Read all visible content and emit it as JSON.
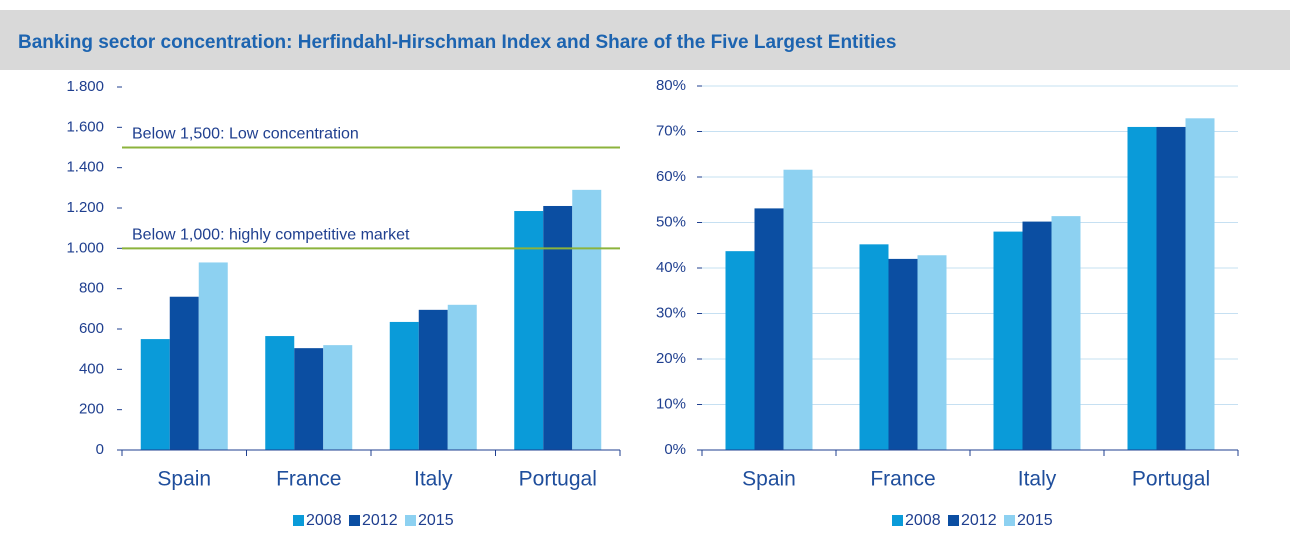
{
  "title": "Banking sector concentration: Herfindahl-Hirschman Index and Share of the Five Largest Entities",
  "chart_data": [
    {
      "type": "bar",
      "categories": [
        "Spain",
        "France",
        "Italy",
        "Portugal"
      ],
      "series": [
        {
          "name": "2008",
          "color": "#0a9bd9",
          "values": [
            550,
            565,
            635,
            1185
          ]
        },
        {
          "name": "2012",
          "color": "#0b4ea2",
          "values": [
            760,
            505,
            695,
            1210
          ]
        },
        {
          "name": "2015",
          "color": "#8dd1f1",
          "values": [
            930,
            520,
            720,
            1290
          ]
        }
      ],
      "ylim": [
        0,
        1800
      ],
      "yticks": [
        0,
        200,
        400,
        600,
        800,
        {
          "value": 1000,
          "label": "1.000"
        },
        {
          "value": 1200,
          "label": "1.200"
        },
        {
          "value": 1400,
          "label": "1.400"
        },
        {
          "value": 1600,
          "label": "1.600"
        },
        {
          "value": 1800,
          "label": "1.800"
        }
      ],
      "grid": false,
      "reference_lines": [
        {
          "value": 1500,
          "label": "Below 1,500: Low concentration",
          "color": "#8cb33c"
        },
        {
          "value": 1000,
          "label": "Below 1,000: highly competitive market",
          "color": "#8cb33c"
        }
      ]
    },
    {
      "type": "bar",
      "categories": [
        "Spain",
        "France",
        "Italy",
        "Portugal"
      ],
      "series": [
        {
          "name": "2008",
          "color": "#0a9bd9",
          "values": [
            43.7,
            45.2,
            48.0,
            71.0
          ]
        },
        {
          "name": "2012",
          "color": "#0b4ea2",
          "values": [
            53.1,
            42.0,
            50.2,
            71.0
          ]
        },
        {
          "name": "2015",
          "color": "#8dd1f1",
          "values": [
            61.6,
            42.8,
            51.4,
            72.9
          ]
        }
      ],
      "ylim": [
        0,
        80
      ],
      "yticks": [
        {
          "value": 0,
          "label": "0%"
        },
        {
          "value": 10,
          "label": "10%"
        },
        {
          "value": 20,
          "label": "20%"
        },
        {
          "value": 30,
          "label": "30%"
        },
        {
          "value": 40,
          "label": "40%"
        },
        {
          "value": 50,
          "label": "50%"
        },
        {
          "value": 60,
          "label": "60%"
        },
        {
          "value": 70,
          "label": "70%"
        },
        {
          "value": 80,
          "label": "80%"
        }
      ],
      "grid": true
    }
  ]
}
